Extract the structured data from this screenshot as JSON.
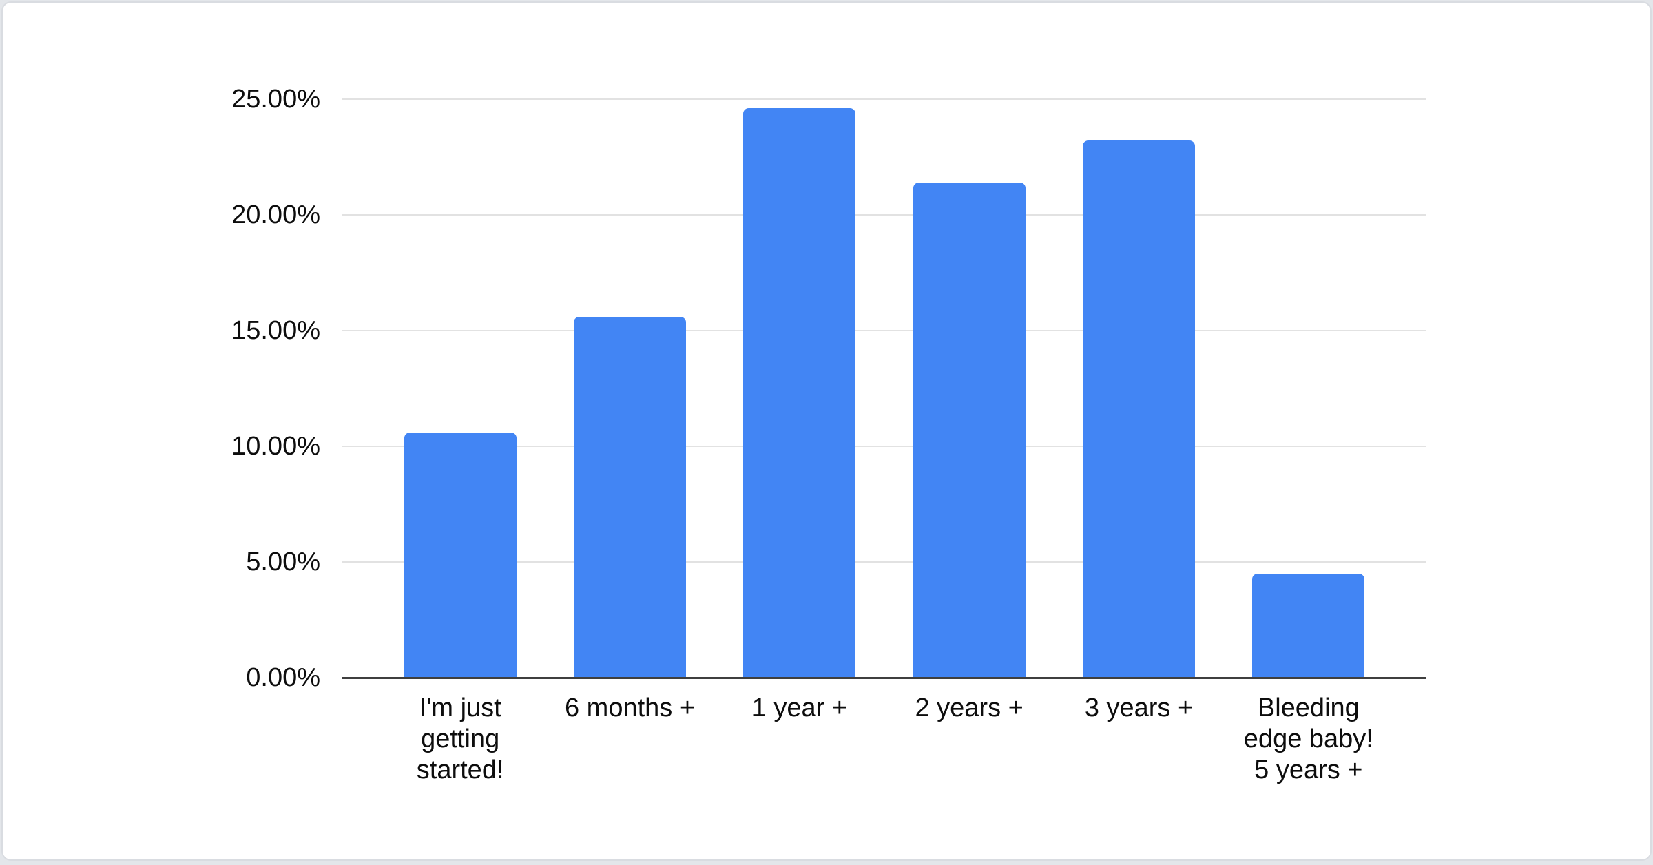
{
  "page": {
    "background_color": "#e3e6ea"
  },
  "card": {
    "background_color": "#ffffff",
    "border_color": "#d9dce1"
  },
  "chart_data": {
    "type": "bar",
    "title": "",
    "xlabel": "",
    "ylabel": "",
    "legend": "none",
    "grid": true,
    "ylim": [
      0,
      25
    ],
    "unit": "%",
    "categories": [
      "I'm just getting started!",
      "6 months +",
      "1 year +",
      "2 years +",
      "3 years +",
      "Bleeding edge baby! 5 years +"
    ],
    "category_label_lines": [
      [
        "I'm just",
        "getting",
        "started!"
      ],
      [
        "6 months +"
      ],
      [
        "1 year +"
      ],
      [
        "2 years +"
      ],
      [
        "3 years +"
      ],
      [
        "Bleeding",
        "edge baby!",
        "5 years +"
      ]
    ],
    "values": [
      10.6,
      15.6,
      24.6,
      21.4,
      23.2,
      4.5
    ],
    "y_ticks": [
      {
        "value": 0,
        "label": "0.00%"
      },
      {
        "value": 5,
        "label": "5.00%"
      },
      {
        "value": 10,
        "label": "10.00%"
      },
      {
        "value": 15,
        "label": "15.00%"
      },
      {
        "value": 20,
        "label": "20.00%"
      },
      {
        "value": 25,
        "label": "25.00%"
      }
    ],
    "colors": {
      "bar": "#4285f4",
      "gridline": "#e2e2e2",
      "axis_line": "#3f3f3f",
      "label": "#0d0d0d"
    }
  }
}
